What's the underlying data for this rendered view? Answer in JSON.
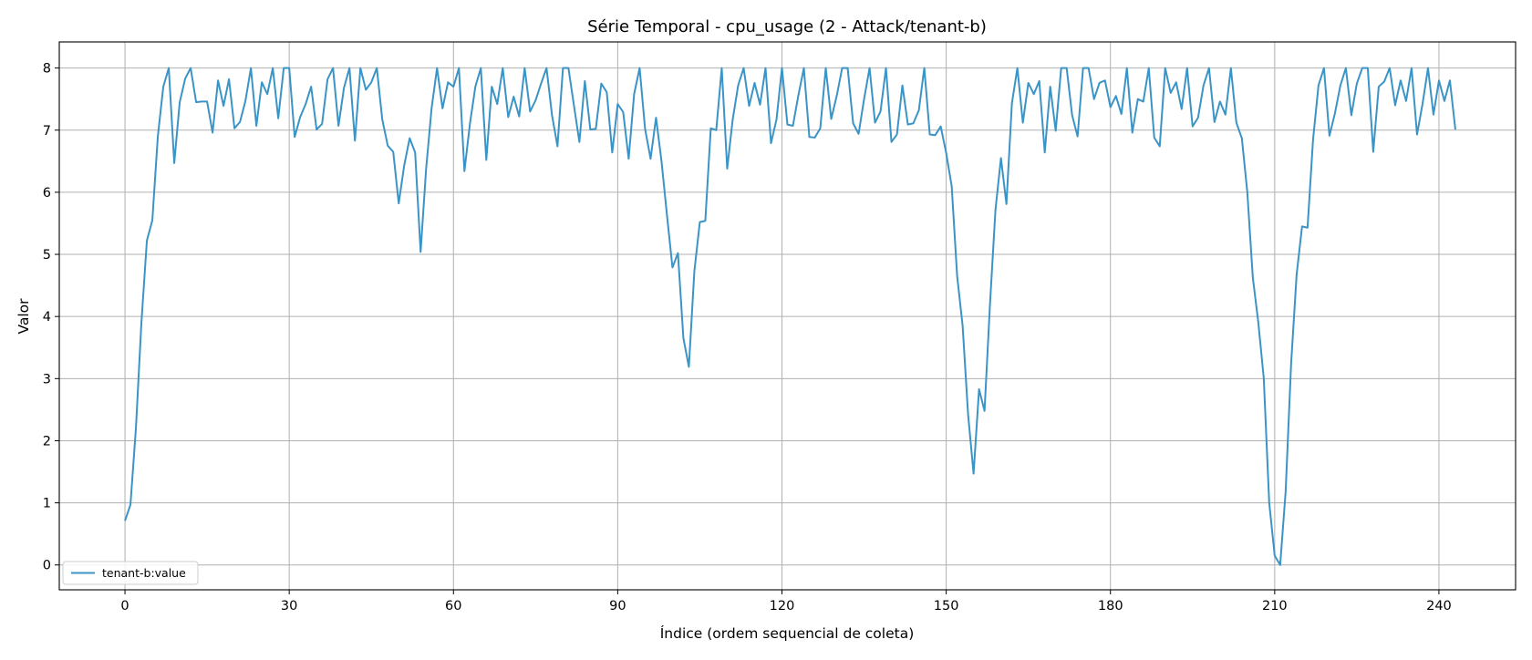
{
  "chart_data": {
    "type": "line",
    "title": "Série Temporal - cpu_usage (2 - Attack/tenant-b)",
    "xlabel": "Índice (ordem sequencial de coleta)",
    "ylabel": "Valor",
    "xlim": [
      -12,
      254
    ],
    "ylim": [
      -0.4,
      8.42
    ],
    "xticks": [
      0,
      30,
      60,
      90,
      120,
      150,
      180,
      210,
      240
    ],
    "yticks": [
      0,
      1,
      2,
      3,
      4,
      5,
      6,
      7,
      8
    ],
    "grid": true,
    "legend_position": "lower-left",
    "series": [
      {
        "name": "tenant-b:value",
        "color": "#3b94c6",
        "y": [
          0.71,
          0.97,
          2.2,
          3.9,
          5.22,
          5.55,
          6.9,
          7.7,
          8.0,
          6.47,
          7.45,
          7.83,
          8.0,
          7.45,
          7.46,
          7.46,
          6.96,
          7.8,
          7.39,
          7.82,
          7.03,
          7.13,
          7.47,
          8.0,
          7.07,
          7.77,
          7.58,
          8.0,
          7.19,
          8.0,
          8.0,
          6.89,
          7.21,
          7.42,
          7.7,
          7.01,
          7.1,
          7.82,
          8.0,
          7.07,
          7.68,
          8.0,
          6.83,
          8.0,
          7.65,
          7.77,
          8.0,
          7.17,
          6.75,
          6.65,
          5.82,
          6.43,
          6.87,
          6.64,
          5.04,
          6.37,
          7.35,
          8.0,
          7.35,
          7.77,
          7.7,
          8.0,
          6.34,
          7.1,
          7.7,
          8.0,
          6.52,
          7.7,
          7.42,
          8.0,
          7.21,
          7.54,
          7.22,
          8.0,
          7.3,
          7.48,
          7.75,
          8.0,
          7.24,
          6.74,
          8.0,
          8.0,
          7.4,
          6.81,
          7.79,
          7.01,
          7.02,
          7.75,
          7.61,
          6.64,
          7.42,
          7.29,
          6.54,
          7.58,
          8.0,
          7.02,
          6.54,
          7.2,
          6.5,
          5.63,
          4.79,
          5.02,
          3.65,
          3.19,
          4.73,
          5.52,
          5.54,
          7.03,
          7.0,
          8.0,
          6.38,
          7.17,
          7.72,
          8.0,
          7.39,
          7.76,
          7.41,
          8.0,
          6.79,
          7.17,
          8.0,
          7.09,
          7.07,
          7.56,
          8.0,
          6.89,
          6.88,
          7.03,
          8.0,
          7.18,
          7.55,
          8.0,
          8.0,
          7.11,
          6.94,
          7.5,
          8.0,
          7.12,
          7.3,
          8.0,
          6.81,
          6.93,
          7.72,
          7.09,
          7.11,
          7.32,
          8.0,
          6.93,
          6.92,
          7.06,
          6.63,
          6.1,
          4.65,
          3.85,
          2.42,
          1.47,
          2.83,
          2.48,
          4.2,
          5.72,
          6.55,
          5.81,
          7.43,
          8.0,
          7.12,
          7.76,
          7.58,
          7.79,
          6.64,
          7.7,
          6.99,
          8.0,
          8.0,
          7.24,
          6.9,
          8.0,
          8.0,
          7.5,
          7.76,
          7.8,
          7.37,
          7.55,
          7.26,
          8.0,
          6.96,
          7.5,
          7.46,
          8.0,
          6.88,
          6.74,
          8.0,
          7.6,
          7.77,
          7.34,
          8.0,
          7.06,
          7.2,
          7.72,
          8.0,
          7.13,
          7.46,
          7.25,
          8.0,
          7.12,
          6.87,
          6.0,
          4.63,
          3.91,
          3.01,
          1.0,
          0.15,
          0.0,
          1.18,
          3.24,
          4.67,
          5.45,
          5.43,
          6.84,
          7.72,
          8.0,
          6.91,
          7.27,
          7.72,
          8.0,
          7.24,
          7.75,
          8.0,
          8.0,
          6.65,
          7.7,
          7.78,
          8.0,
          7.4,
          7.8,
          7.47,
          8.0,
          6.93,
          7.42,
          8.0,
          7.25,
          7.8,
          7.47,
          7.8,
          7.01
        ]
      }
    ]
  }
}
